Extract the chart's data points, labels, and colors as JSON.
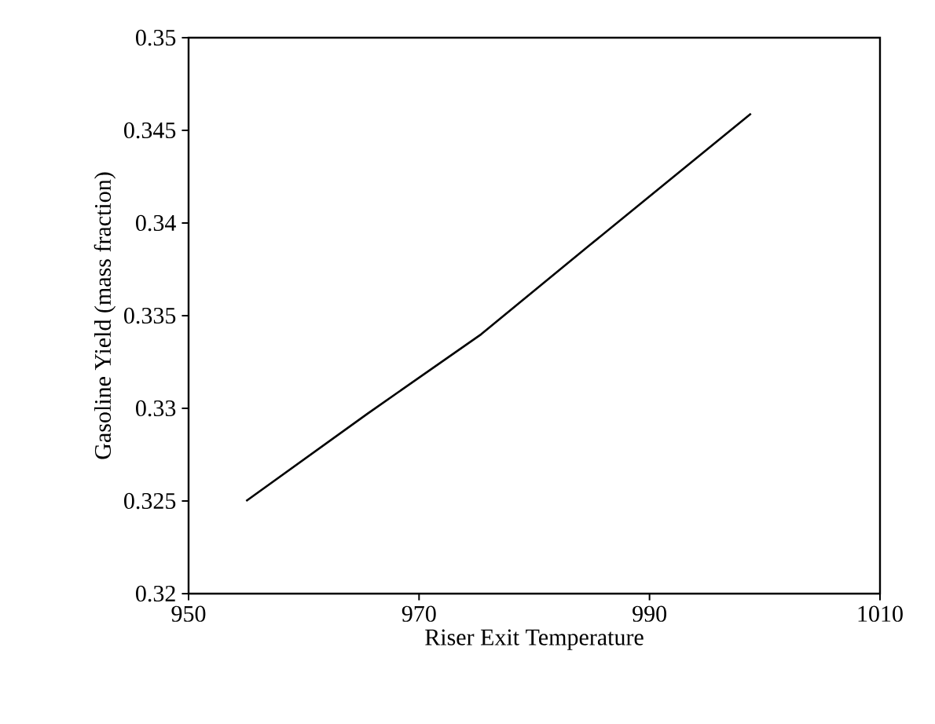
{
  "chart_data": {
    "type": "line",
    "xlabel": "Riser Exit Temperature",
    "ylabel": "Gasoline Yield (mass fraction)",
    "x": [
      955,
      965.5,
      975.4,
      984.8,
      998.8
    ],
    "series": [
      {
        "color": "#000000",
        "values": [
          0.325,
          0.3297,
          0.334,
          0.3388,
          0.3459
        ]
      }
    ],
    "xlim": [
      950,
      1010
    ],
    "xticks": [
      950,
      970,
      990,
      1010
    ],
    "ylim": [
      0.32,
      0.35
    ],
    "yticks": [
      0.32,
      0.325,
      0.33,
      0.335,
      0.34,
      0.345,
      0.35
    ],
    "grid": false,
    "marker": "none",
    "line_style": "solid"
  }
}
